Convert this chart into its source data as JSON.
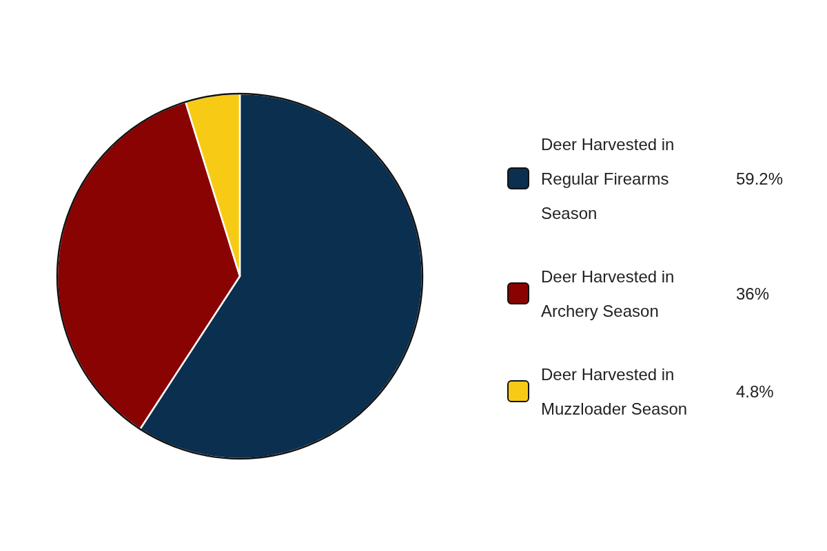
{
  "chart_data": {
    "type": "pie",
    "categories": [
      "Deer Harvested in Regular Firearms Season",
      "Deer Harvested in Archery Season",
      "Deer Harvested in Muzzloader Season"
    ],
    "values": [
      59.2,
      36,
      4.8
    ],
    "colors": [
      "#0b2f4e",
      "#8a0303",
      "#f7cb15"
    ],
    "value_labels": [
      "59.2%",
      "36%",
      "4.8%"
    ],
    "legend": "right"
  }
}
